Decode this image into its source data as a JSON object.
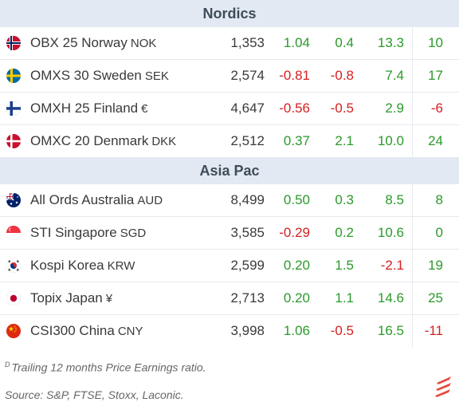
{
  "sections": [
    {
      "title": "Nordics",
      "rows": [
        {
          "name": "OBX 25 Norway",
          "currency": "NOK",
          "flag": "norway-flag",
          "level": "1,353",
          "c1": "1.04",
          "c2": "0.4",
          "c3": "13.3",
          "pe": "10"
        },
        {
          "name": "OMXS 30 Sweden",
          "currency": "SEK",
          "flag": "sweden-flag",
          "level": "2,574",
          "c1": "-0.81",
          "c2": "-0.8",
          "c3": "7.4",
          "pe": "17"
        },
        {
          "name": "OMXH 25 Finland",
          "currency": "€",
          "flag": "finland-flag",
          "level": "4,647",
          "c1": "-0.56",
          "c2": "-0.5",
          "c3": "2.9",
          "pe": "-6"
        },
        {
          "name": "OMXC 20 Denmark",
          "currency": "DKK",
          "flag": "denmark-flag",
          "level": "2,512",
          "c1": "0.37",
          "c2": "2.1",
          "c3": "10.0",
          "pe": "24"
        }
      ]
    },
    {
      "title": "Asia Pac",
      "rows": [
        {
          "name": "All Ords Australia",
          "currency": "AUD",
          "flag": "australia-flag",
          "level": "8,499",
          "c1": "0.50",
          "c2": "0.3",
          "c3": "8.5",
          "pe": "8"
        },
        {
          "name": "STI Singapore",
          "currency": "SGD",
          "flag": "singapore-flag",
          "level": "3,585",
          "c1": "-0.29",
          "c2": "0.2",
          "c3": "10.6",
          "pe": "0"
        },
        {
          "name": "Kospi Korea",
          "currency": "KRW",
          "flag": "korea-flag",
          "level": "2,599",
          "c1": "0.20",
          "c2": "1.5",
          "c3": "-2.1",
          "pe": "19"
        },
        {
          "name": "Topix Japan",
          "currency": "¥",
          "flag": "japan-flag",
          "level": "2,713",
          "c1": "0.20",
          "c2": "1.1",
          "c3": "14.6",
          "pe": "25"
        },
        {
          "name": "CSI300 China",
          "currency": "CNY",
          "flag": "china-flag",
          "level": "3,998",
          "c1": "1.06",
          "c2": "-0.5",
          "c3": "16.5",
          "pe": "-11"
        }
      ]
    }
  ],
  "footnote": {
    "marker": "D",
    "text": "Trailing 12 months Price Earnings ratio."
  },
  "source": "Source: S&P, FTSE, Stoxx, Laconic.",
  "colors": {
    "positive": "#2a9a2a",
    "negative": "#d42020",
    "header_bg": "#e2e9f2",
    "logo": "#e84c3d"
  },
  "logo_icon": "laconic-logo-icon"
}
